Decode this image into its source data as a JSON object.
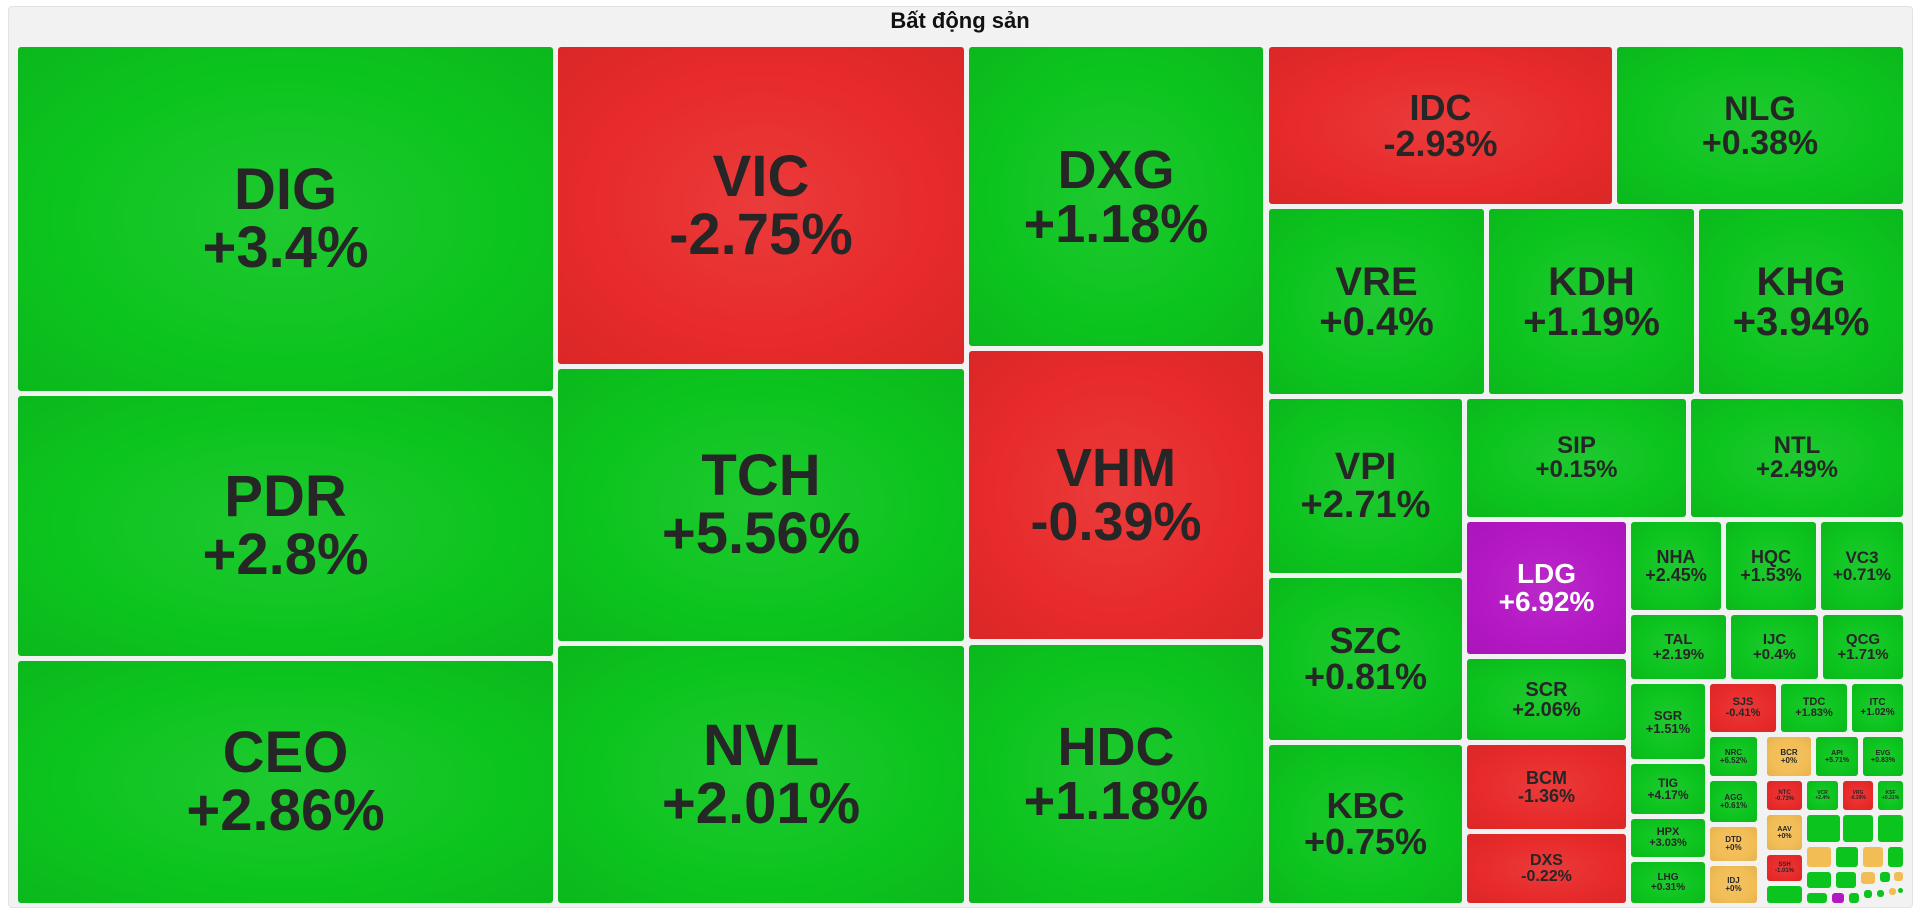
{
  "chart_data": {
    "type": "treemap",
    "title": "Bất động sản",
    "colors": {
      "up": "#0cc41e",
      "down": "#e82a2a",
      "ceiling": "#b417c4",
      "flat": "#f2bd55"
    },
    "items": [
      {
        "symbol": "DIG",
        "change": "+3.4%",
        "status": "up"
      },
      {
        "symbol": "PDR",
        "change": "+2.8%",
        "status": "up"
      },
      {
        "symbol": "CEO",
        "change": "+2.86%",
        "status": "up"
      },
      {
        "symbol": "VIC",
        "change": "-2.75%",
        "status": "down"
      },
      {
        "symbol": "TCH",
        "change": "+5.56%",
        "status": "up"
      },
      {
        "symbol": "NVL",
        "change": "+2.01%",
        "status": "up"
      },
      {
        "symbol": "DXG",
        "change": "+1.18%",
        "status": "up"
      },
      {
        "symbol": "VHM",
        "change": "-0.39%",
        "status": "down"
      },
      {
        "symbol": "HDC",
        "change": "+1.18%",
        "status": "up"
      },
      {
        "symbol": "IDC",
        "change": "-2.93%",
        "status": "down"
      },
      {
        "symbol": "NLG",
        "change": "+0.38%",
        "status": "up"
      },
      {
        "symbol": "VRE",
        "change": "+0.4%",
        "status": "up"
      },
      {
        "symbol": "KDH",
        "change": "+1.19%",
        "status": "up"
      },
      {
        "symbol": "KHG",
        "change": "+3.94%",
        "status": "up"
      },
      {
        "symbol": "VPI",
        "change": "+2.71%",
        "status": "up"
      },
      {
        "symbol": "SIP",
        "change": "+0.15%",
        "status": "up"
      },
      {
        "symbol": "NTL",
        "change": "+2.49%",
        "status": "up"
      },
      {
        "symbol": "SZC",
        "change": "+0.81%",
        "status": "up"
      },
      {
        "symbol": "KBC",
        "change": "+0.75%",
        "status": "up"
      },
      {
        "symbol": "LDG",
        "change": "+6.92%",
        "status": "ceiling"
      },
      {
        "symbol": "NHA",
        "change": "+2.45%",
        "status": "up"
      },
      {
        "symbol": "HQC",
        "change": "+1.53%",
        "status": "up"
      },
      {
        "symbol": "VC3",
        "change": "+0.71%",
        "status": "up"
      },
      {
        "symbol": "TAL",
        "change": "+2.19%",
        "status": "up"
      },
      {
        "symbol": "IJC",
        "change": "+0.4%",
        "status": "up"
      },
      {
        "symbol": "QCG",
        "change": "+1.71%",
        "status": "up"
      },
      {
        "symbol": "SCR",
        "change": "+2.06%",
        "status": "up"
      },
      {
        "symbol": "BCM",
        "change": "-1.36%",
        "status": "down"
      },
      {
        "symbol": "DXS",
        "change": "-0.22%",
        "status": "down"
      },
      {
        "symbol": "SGR",
        "change": "+1.51%",
        "status": "up"
      },
      {
        "symbol": "SJS",
        "change": "-0.41%",
        "status": "down"
      },
      {
        "symbol": "TDC",
        "change": "+1.83%",
        "status": "up"
      },
      {
        "symbol": "ITC",
        "change": "+1.02%",
        "status": "up"
      },
      {
        "symbol": "TIG",
        "change": "+4.17%",
        "status": "up"
      },
      {
        "symbol": "NRC",
        "change": "+6.52%",
        "status": "up"
      },
      {
        "symbol": "BCR",
        "change": "+0%",
        "status": "flat"
      },
      {
        "symbol": "API",
        "change": "+5.71%",
        "status": "up"
      },
      {
        "symbol": "EVG",
        "change": "+0.83%",
        "status": "up"
      },
      {
        "symbol": "AGG",
        "change": "+0.61%",
        "status": "up"
      },
      {
        "symbol": "NTC",
        "change": "-0.73%",
        "status": "down"
      },
      {
        "symbol": "VCR",
        "change": "+2.4%",
        "status": "up"
      },
      {
        "symbol": "VRG",
        "change": "-0.39%",
        "status": "down"
      },
      {
        "symbol": "KSF",
        "change": "+0.31%",
        "status": "up"
      },
      {
        "symbol": "HPX",
        "change": "+3.03%",
        "status": "up"
      },
      {
        "symbol": "AAV",
        "change": "+0%",
        "status": "flat"
      },
      {
        "symbol": "DTD",
        "change": "+0%",
        "status": "flat"
      },
      {
        "symbol": "SSH",
        "change": "-1.01%",
        "status": "down"
      },
      {
        "symbol": "LHG",
        "change": "+0.31%",
        "status": "up"
      },
      {
        "symbol": "IDJ",
        "change": "+0%",
        "status": "flat"
      }
    ]
  }
}
